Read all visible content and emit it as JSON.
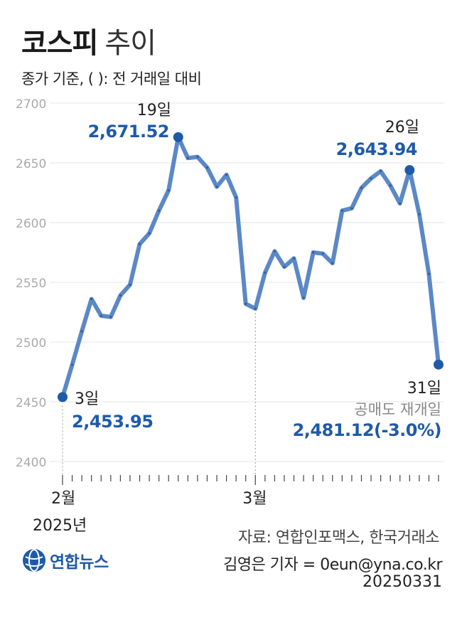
{
  "header": {
    "title": "코스피",
    "title_suffix": "추이",
    "subtitle": "종가 기준, ( ): 전 거래일 대비"
  },
  "colors": {
    "line": "#5b88c6",
    "point": "#1e5aa8",
    "highlight_text": "#1e5aa8",
    "axis_text": "#aaaaaa"
  },
  "chart_data": {
    "type": "line",
    "title": "코스피 추이",
    "ylim": [
      2400,
      2700
    ],
    "yticks": [
      2400,
      2450,
      2500,
      2550,
      2600,
      2650,
      2700
    ],
    "x_labels": [
      {
        "label": "2월",
        "sub": "2025년",
        "index": 0
      },
      {
        "label": "3월",
        "sub": "",
        "index": 20
      }
    ],
    "values": [
      2453.95,
      2481,
      2509,
      2536,
      2522,
      2521,
      2539,
      2548,
      2582,
      2591,
      2610,
      2627,
      2671.52,
      2654,
      2655,
      2646,
      2630,
      2640,
      2621,
      2532,
      2528,
      2558,
      2576,
      2563,
      2570,
      2537,
      2575,
      2574,
      2566,
      2610,
      2612,
      2629,
      2637,
      2643,
      2631,
      2616,
      2643.94,
      2607,
      2557,
      2481.12
    ],
    "annotations": [
      {
        "index": 0,
        "day": "3일",
        "value": "2,453.95",
        "note": ""
      },
      {
        "index": 12,
        "day": "19일",
        "value": "2,671.52",
        "note": ""
      },
      {
        "index": 36,
        "day": "26일",
        "value": "2,643.94",
        "note": ""
      },
      {
        "index": 39,
        "day": "31일",
        "value": "2,481.12(-3.0%)",
        "note": "공매도 재개일"
      }
    ]
  },
  "footer": {
    "source": "자료: 연합인포맥스, 한국거래소",
    "reporter": "김영은 기자 = 0eun@yna.co.kr",
    "date": "20250331",
    "logo_text": "연합뉴스"
  }
}
